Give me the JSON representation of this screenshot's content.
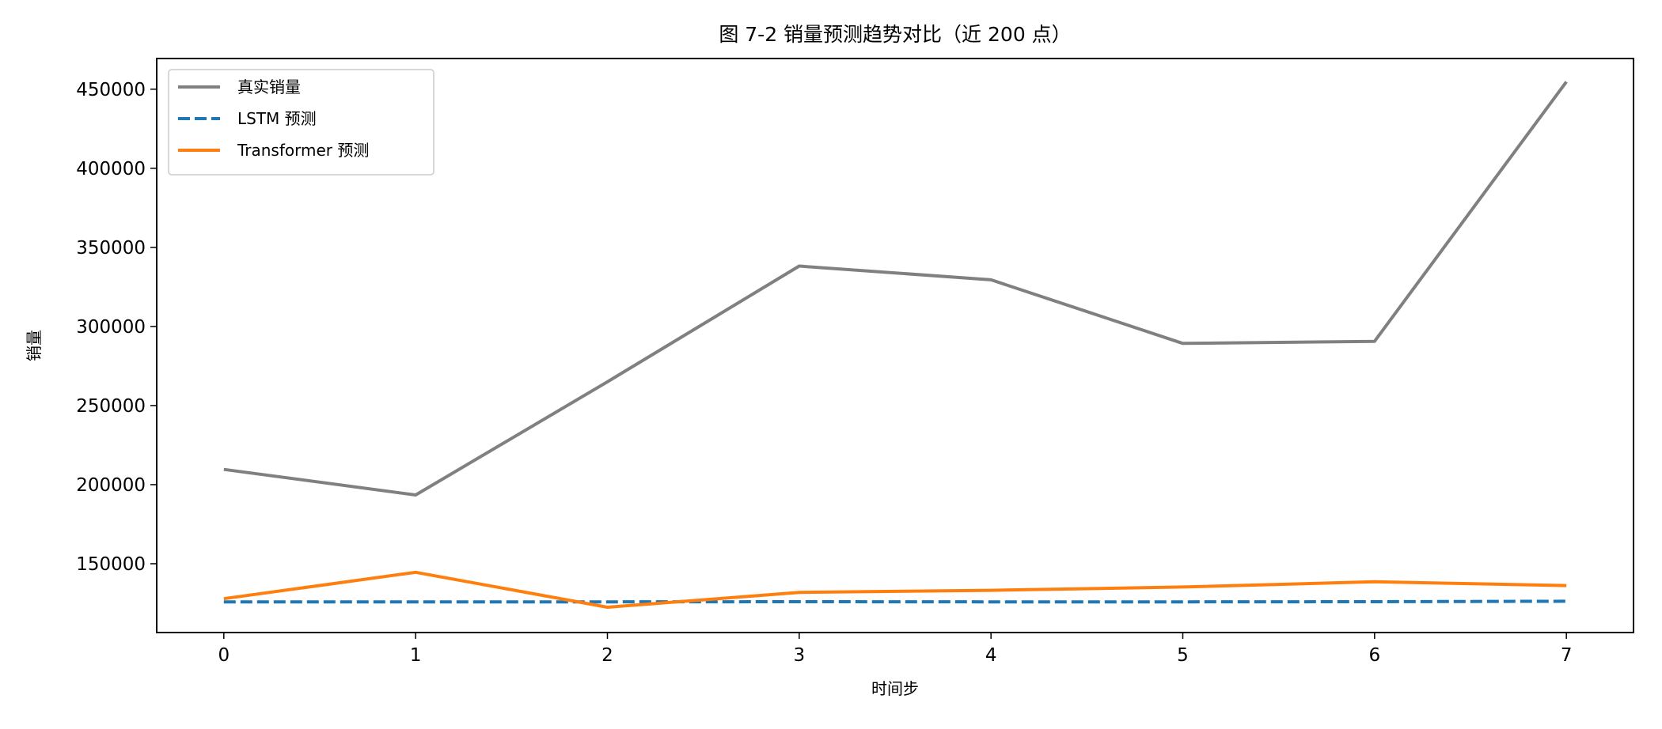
{
  "chart_data": {
    "type": "line",
    "title": "图 7-2 销量预测趋势对比（近 200 点）",
    "xlabel": "时间步",
    "ylabel": "销量",
    "x": [
      0,
      1,
      2,
      3,
      4,
      5,
      6,
      7
    ],
    "xlim": [
      -0.35,
      7.35
    ],
    "ylim": [
      106500,
      469400
    ],
    "xticks": [
      0,
      1,
      2,
      3,
      4,
      5,
      6,
      7
    ],
    "xtick_labels": [
      "0",
      "1",
      "2",
      "3",
      "4",
      "5",
      "6",
      "7"
    ],
    "yticks": [
      150000,
      200000,
      250000,
      300000,
      350000,
      400000,
      450000
    ],
    "ytick_labels": [
      "150000",
      "200000",
      "250000",
      "300000",
      "350000",
      "400000",
      "450000"
    ],
    "grid": false,
    "legend_position": "top-left",
    "series": [
      {
        "name": "真实销量",
        "color": "#808080",
        "style": "solid",
        "values": [
          209600,
          193500,
          265000,
          338200,
          329500,
          289300,
          290600,
          454700
        ]
      },
      {
        "name": "LSTM 预测",
        "color": "#1f77b4",
        "style": "dashed",
        "values": [
          125900,
          125900,
          125900,
          126000,
          125900,
          125900,
          126000,
          126300
        ]
      },
      {
        "name": "Transformer 预测",
        "color": "#ff7f0e",
        "style": "solid",
        "values": [
          127900,
          144600,
          122500,
          131900,
          133200,
          135300,
          138600,
          136200
        ]
      }
    ]
  }
}
